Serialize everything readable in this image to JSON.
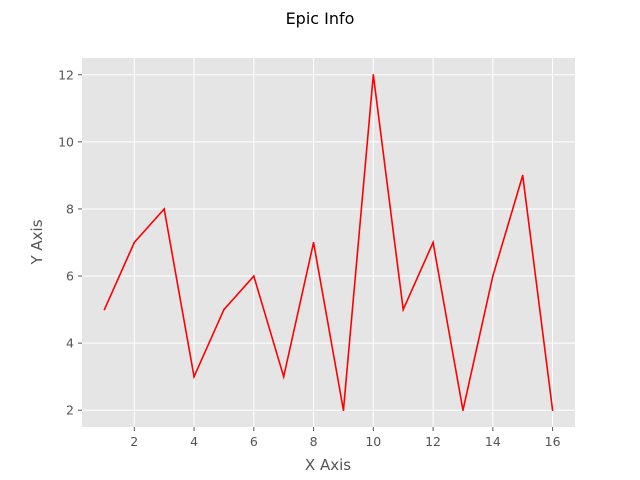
{
  "chart_data": {
    "type": "line",
    "title": "Epic Info",
    "xlabel": "X Axis",
    "ylabel": "Y Axis",
    "x": [
      1,
      2,
      3,
      4,
      5,
      6,
      7,
      8,
      9,
      10,
      11,
      12,
      13,
      14,
      15,
      16
    ],
    "series": [
      {
        "values": [
          5,
          7,
          8,
          3,
          5,
          6,
          3,
          7,
          2,
          12,
          5,
          7,
          2,
          6,
          9,
          2
        ],
        "color": "#ff0000"
      }
    ],
    "xlim": [
      0.25,
      16.75
    ],
    "ylim": [
      1.5,
      12.5
    ],
    "xticks": [
      2,
      4,
      6,
      8,
      10,
      12,
      14,
      16
    ],
    "yticks": [
      2,
      4,
      6,
      8,
      10,
      12
    ],
    "grid": true,
    "background": "#e5e5e5",
    "grid_color": "#ffffff"
  }
}
